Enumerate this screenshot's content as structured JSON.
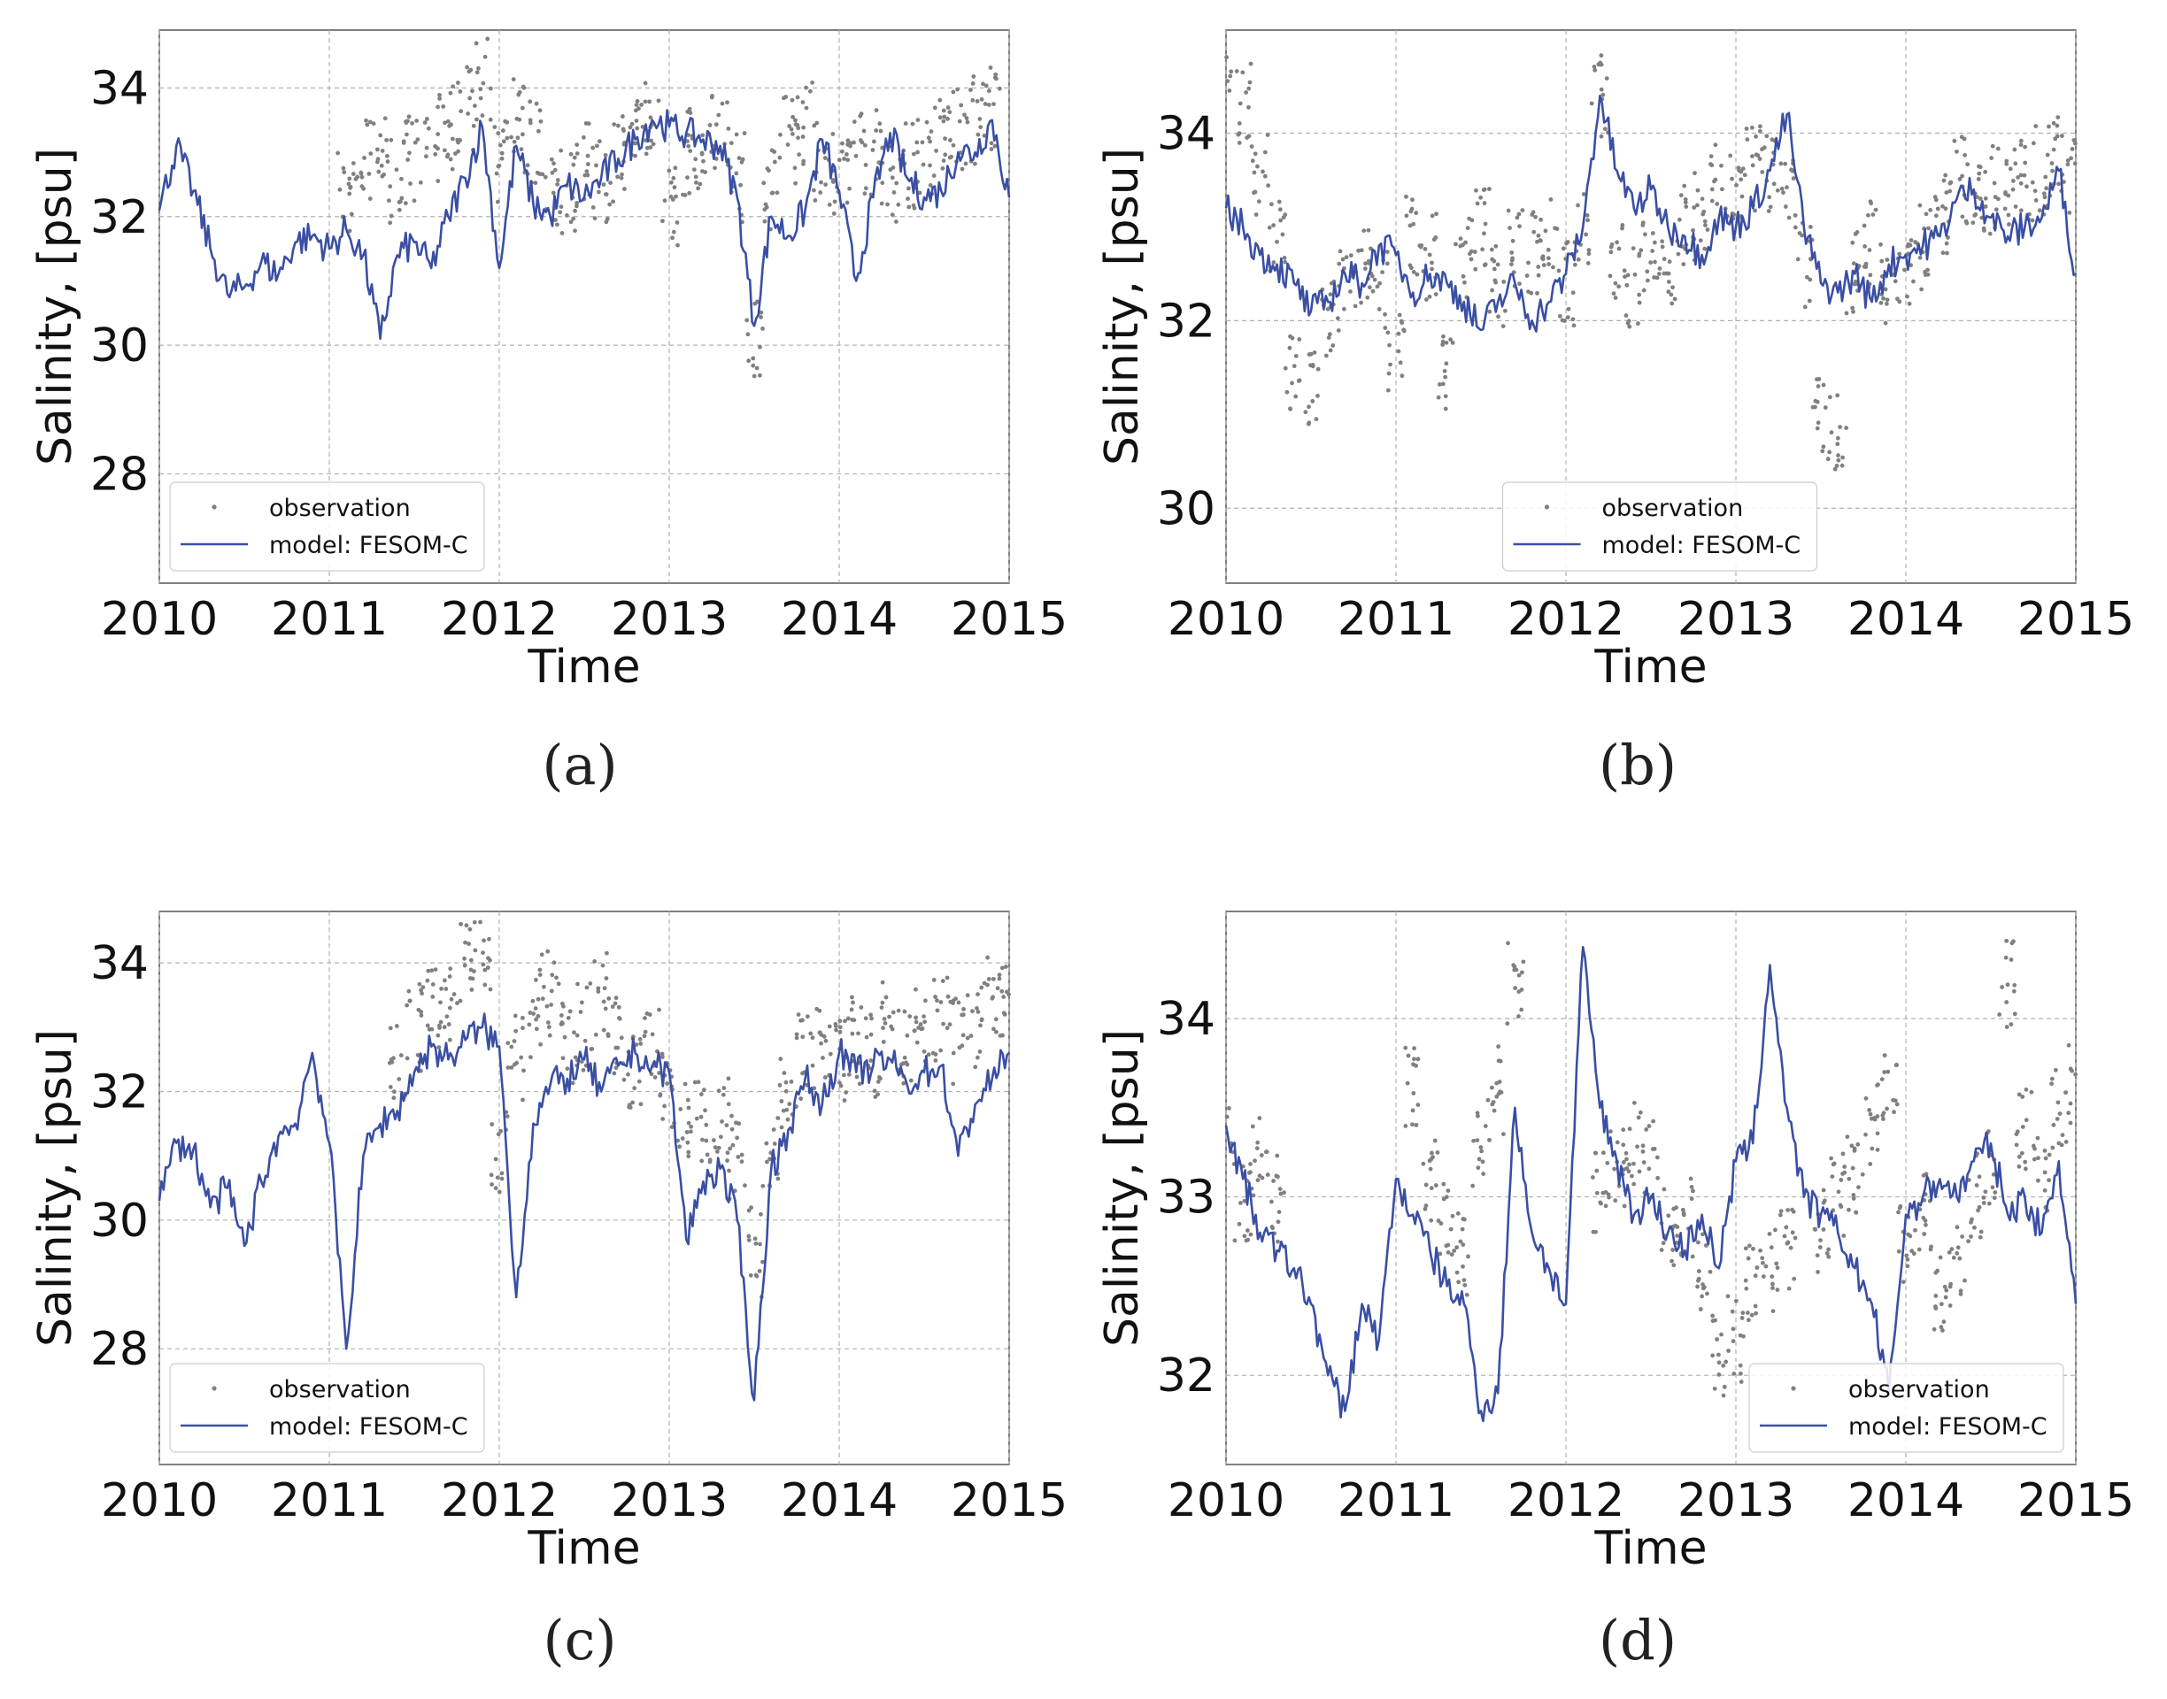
{
  "colors": {
    "observation": "#808080",
    "model": "#3a4fa3",
    "grid": "#b0b0b0",
    "axis": "#555555"
  },
  "chart_data": [
    {
      "type": "line",
      "panel_label": "(a)",
      "xlabel": "Time",
      "ylabel": "Salinity, [psu]",
      "xlim": [
        2010,
        2015
      ],
      "ylim": [
        26.3,
        34.9
      ],
      "xticks": [
        2010,
        2011,
        2012,
        2013,
        2014,
        2015
      ],
      "yticks": [
        28,
        30,
        32,
        34
      ],
      "grid": true,
      "legend": {
        "location": "lower-left",
        "entries": [
          "observation",
          "model: FESOM-C"
        ]
      },
      "series": [
        {
          "name": "observation",
          "kind": "scatter",
          "x": [
            2011.1,
            2011.2,
            2011.3,
            2011.4,
            2011.5,
            2011.6,
            2011.7,
            2011.8,
            2011.9,
            2012.0,
            2012.1,
            2012.2,
            2012.3,
            2012.4,
            2012.5,
            2012.6,
            2012.7,
            2012.8,
            2012.9,
            2013.0,
            2013.1,
            2013.2,
            2013.3,
            2013.4,
            2013.5,
            2013.6,
            2013.7,
            2013.8,
            2013.9,
            2014.0,
            2014.1,
            2014.2,
            2014.3,
            2014.4,
            2014.5,
            2014.6,
            2014.7,
            2014.8,
            2014.9
          ],
          "y": [
            32.4,
            32.9,
            33.0,
            32.6,
            32.9,
            33.2,
            33.4,
            33.7,
            34.1,
            32.8,
            33.6,
            33.2,
            32.5,
            32.4,
            32.8,
            32.6,
            32.9,
            33.3,
            33.6,
            32.2,
            33.0,
            32.8,
            33.4,
            32.6,
            30.2,
            32.5,
            33.2,
            33.5,
            32.8,
            32.7,
            33.1,
            33.0,
            32.6,
            32.8,
            33.0,
            33.2,
            33.3,
            33.5,
            33.7
          ]
        },
        {
          "name": "model: FESOM-C",
          "kind": "line",
          "x": [
            2010.0,
            2010.1,
            2010.2,
            2010.3,
            2010.4,
            2010.5,
            2010.6,
            2010.7,
            2010.8,
            2010.9,
            2011.0,
            2011.1,
            2011.2,
            2011.3,
            2011.4,
            2011.5,
            2011.6,
            2011.7,
            2011.8,
            2011.9,
            2012.0,
            2012.1,
            2012.2,
            2012.3,
            2012.4,
            2012.5,
            2012.6,
            2012.7,
            2012.8,
            2012.9,
            2013.0,
            2013.1,
            2013.2,
            2013.3,
            2013.4,
            2013.5,
            2013.6,
            2013.7,
            2013.8,
            2013.9,
            2014.0,
            2014.1,
            2014.2,
            2014.3,
            2014.4,
            2014.5,
            2014.6,
            2014.7,
            2014.8,
            2014.9,
            2015.0
          ],
          "y": [
            32.1,
            33.1,
            32.4,
            31.5,
            30.8,
            30.9,
            31.3,
            31.1,
            31.6,
            31.7,
            31.5,
            31.8,
            31.4,
            30.1,
            31.4,
            31.6,
            31.2,
            32.0,
            32.6,
            33.4,
            31.2,
            33.1,
            32.2,
            32.0,
            32.5,
            32.3,
            32.6,
            32.9,
            33.2,
            33.5,
            33.4,
            33.3,
            33.2,
            33.1,
            32.3,
            30.3,
            32.0,
            31.7,
            32.1,
            33.2,
            32.4,
            31.0,
            32.3,
            33.3,
            32.6,
            32.3,
            32.4,
            33.0,
            33.0,
            33.5,
            32.3
          ]
        }
      ]
    },
    {
      "type": "line",
      "panel_label": "(b)",
      "xlabel": "Time",
      "ylabel": "Salinity, [psu]",
      "xlim": [
        2010,
        2015
      ],
      "ylim": [
        29.2,
        35.1
      ],
      "xticks": [
        2010,
        2011,
        2012,
        2013,
        2014,
        2015
      ],
      "yticks": [
        30,
        32,
        34
      ],
      "grid": true,
      "legend": {
        "location": "lower-center",
        "entries": [
          "observation",
          "model: FESOM-C"
        ]
      },
      "series": [
        {
          "name": "observation",
          "kind": "scatter",
          "x": [
            2010.0,
            2010.1,
            2010.2,
            2010.3,
            2010.4,
            2010.5,
            2010.6,
            2010.7,
            2010.8,
            2010.9,
            2011.0,
            2011.1,
            2011.2,
            2011.3,
            2011.4,
            2011.5,
            2011.6,
            2011.7,
            2011.8,
            2011.9,
            2012.0,
            2012.1,
            2012.2,
            2012.3,
            2012.4,
            2012.5,
            2012.6,
            2012.7,
            2012.8,
            2012.9,
            2013.0,
            2013.1,
            2013.2,
            2013.3,
            2013.4,
            2013.5,
            2013.6,
            2013.7,
            2013.8,
            2013.9,
            2014.0,
            2014.1,
            2014.2,
            2014.3,
            2014.4,
            2014.5,
            2014.6,
            2014.7,
            2014.8,
            2014.9,
            2015.0
          ],
          "y": [
            34.4,
            34.3,
            33.6,
            32.8,
            31.5,
            31.2,
            32.0,
            32.3,
            32.6,
            32.4,
            31.6,
            32.9,
            32.7,
            31.5,
            32.7,
            33.0,
            32.4,
            32.8,
            32.7,
            33.0,
            32.4,
            33.0,
            34.4,
            32.6,
            32.3,
            32.8,
            32.5,
            33.0,
            33.1,
            33.4,
            33.4,
            33.6,
            33.5,
            33.5,
            32.6,
            31.0,
            30.8,
            32.5,
            32.8,
            32.4,
            32.6,
            32.8,
            33.2,
            33.5,
            33.5,
            33.4,
            33.5,
            33.5,
            33.6,
            33.7,
            33.6
          ]
        },
        {
          "name": "model: FESOM-C",
          "kind": "line",
          "x": [
            2010.0,
            2010.1,
            2010.2,
            2010.3,
            2010.4,
            2010.5,
            2010.6,
            2010.7,
            2010.8,
            2010.9,
            2011.0,
            2011.1,
            2011.2,
            2011.3,
            2011.4,
            2011.5,
            2011.6,
            2011.7,
            2011.8,
            2011.9,
            2012.0,
            2012.1,
            2012.2,
            2012.3,
            2012.4,
            2012.5,
            2012.6,
            2012.7,
            2012.8,
            2012.9,
            2013.0,
            2013.1,
            2013.2,
            2013.3,
            2013.4,
            2013.5,
            2013.6,
            2013.7,
            2013.8,
            2013.9,
            2014.0,
            2014.1,
            2014.2,
            2014.3,
            2014.4,
            2014.5,
            2014.6,
            2014.7,
            2014.8,
            2014.9,
            2015.0
          ],
          "y": [
            33.2,
            33.0,
            32.7,
            32.6,
            32.4,
            32.1,
            32.2,
            32.5,
            32.4,
            32.8,
            32.7,
            32.3,
            32.5,
            32.4,
            32.2,
            31.9,
            32.2,
            32.4,
            32.0,
            32.2,
            32.5,
            33.0,
            34.4,
            33.6,
            33.2,
            33.4,
            33.0,
            32.9,
            32.7,
            33.1,
            33.0,
            33.2,
            33.6,
            34.2,
            33.0,
            32.4,
            32.3,
            32.5,
            32.2,
            32.6,
            32.7,
            32.8,
            32.9,
            33.3,
            33.4,
            33.1,
            32.9,
            33.0,
            33.1,
            33.6,
            32.5
          ]
        }
      ]
    },
    {
      "type": "line",
      "panel_label": "(c)",
      "xlabel": "Time",
      "ylabel": "Salinity, [psu]",
      "xlim": [
        2010,
        2015
      ],
      "ylim": [
        26.2,
        34.8
      ],
      "xticks": [
        2010,
        2011,
        2012,
        2013,
        2014,
        2015
      ],
      "yticks": [
        28,
        30,
        32,
        34
      ],
      "grid": true,
      "legend": {
        "location": "lower-left",
        "entries": [
          "observation",
          "model: FESOM-C"
        ]
      },
      "series": [
        {
          "name": "observation",
          "kind": "scatter",
          "x": [
            2011.4,
            2011.5,
            2011.6,
            2011.7,
            2011.8,
            2011.9,
            2012.0,
            2012.1,
            2012.2,
            2012.3,
            2012.4,
            2012.5,
            2012.6,
            2012.7,
            2012.8,
            2012.9,
            2013.0,
            2013.1,
            2013.2,
            2013.3,
            2013.4,
            2013.5,
            2013.6,
            2013.7,
            2013.8,
            2013.9,
            2014.0,
            2014.1,
            2014.2,
            2014.3,
            2014.4,
            2014.5,
            2014.6,
            2014.7,
            2014.8,
            2014.9,
            2015.0
          ],
          "y": [
            32.6,
            33.0,
            33.2,
            33.5,
            34.0,
            34.1,
            31.0,
            32.5,
            33.2,
            33.5,
            32.8,
            33.0,
            33.5,
            32.8,
            32.2,
            32.6,
            32.1,
            31.5,
            31.5,
            31.6,
            31.0,
            29.5,
            31.2,
            32.0,
            32.5,
            32.6,
            32.4,
            32.8,
            32.6,
            33.0,
            32.8,
            33.1,
            33.1,
            32.8,
            33.0,
            33.5,
            33.4
          ]
        },
        {
          "name": "model: FESOM-C",
          "kind": "line",
          "x": [
            2010.0,
            2010.1,
            2010.2,
            2010.3,
            2010.4,
            2010.5,
            2010.6,
            2010.7,
            2010.8,
            2010.9,
            2011.0,
            2011.1,
            2011.2,
            2011.3,
            2011.4,
            2011.5,
            2011.6,
            2011.7,
            2011.8,
            2011.9,
            2012.0,
            2012.1,
            2012.2,
            2012.3,
            2012.4,
            2012.5,
            2012.6,
            2012.7,
            2012.8,
            2012.9,
            2013.0,
            2013.1,
            2013.2,
            2013.3,
            2013.4,
            2013.5,
            2013.6,
            2013.7,
            2013.8,
            2013.9,
            2014.0,
            2014.1,
            2014.2,
            2014.3,
            2014.4,
            2014.5,
            2014.6,
            2014.7,
            2014.8,
            2014.9,
            2015.0
          ],
          "y": [
            30.3,
            31.2,
            31.1,
            30.2,
            30.5,
            29.6,
            30.6,
            31.3,
            31.5,
            32.6,
            31.2,
            28.0,
            31.0,
            31.5,
            31.7,
            32.3,
            32.7,
            32.5,
            32.8,
            33.0,
            32.7,
            28.8,
            31.5,
            32.1,
            32.2,
            32.5,
            32.0,
            32.4,
            32.6,
            32.4,
            32.3,
            29.7,
            30.6,
            30.8,
            30.0,
            27.2,
            30.8,
            31.4,
            32.2,
            31.8,
            32.6,
            32.3,
            32.4,
            32.5,
            32.1,
            32.3,
            32.4,
            31.0,
            31.8,
            32.2,
            32.6
          ]
        }
      ]
    },
    {
      "type": "line",
      "panel_label": "(d)",
      "xlabel": "Time",
      "ylabel": "Salinity, [psu]",
      "xlim": [
        2010,
        2015
      ],
      "ylim": [
        31.5,
        34.6
      ],
      "xticks": [
        2010,
        2011,
        2012,
        2013,
        2014,
        2015
      ],
      "yticks": [
        32,
        33,
        34
      ],
      "grid": true,
      "legend": {
        "location": "lower-right",
        "entries": [
          "observation",
          "model: FESOM-C"
        ]
      },
      "series": [
        {
          "name": "observation",
          "kind": "scatter",
          "x": [
            2010.0,
            2010.1,
            2010.2,
            2010.3,
            2011.1,
            2011.2,
            2011.3,
            2011.4,
            2011.5,
            2011.6,
            2011.7,
            2012.2,
            2012.3,
            2012.4,
            2012.5,
            2012.6,
            2012.7,
            2012.8,
            2012.9,
            2013.0,
            2013.1,
            2013.2,
            2013.3,
            2013.5,
            2013.6,
            2013.7,
            2013.8,
            2013.9,
            2014.0,
            2014.1,
            2014.2,
            2014.3,
            2014.4,
            2014.5,
            2014.6,
            2014.7,
            2014.8,
            2014.9,
            2015.0
          ],
          "y": [
            33.3,
            33.0,
            33.2,
            33.0,
            33.6,
            33.1,
            32.9,
            32.7,
            33.3,
            33.6,
            34.2,
            33.0,
            33.2,
            33.3,
            33.2,
            32.8,
            32.9,
            32.6,
            32.1,
            32.2,
            32.5,
            32.6,
            32.7,
            32.8,
            33.0,
            33.1,
            33.4,
            33.6,
            32.7,
            32.9,
            32.5,
            32.6,
            33.0,
            33.2,
            34.2,
            33.4,
            33.1,
            33.5,
            33.6
          ]
        },
        {
          "name": "model: FESOM-C",
          "kind": "line",
          "x": [
            2010.0,
            2010.1,
            2010.2,
            2010.3,
            2010.4,
            2010.5,
            2010.6,
            2010.7,
            2010.8,
            2010.9,
            2011.0,
            2011.1,
            2011.2,
            2011.3,
            2011.4,
            2011.5,
            2011.6,
            2011.7,
            2011.8,
            2011.9,
            2012.0,
            2012.1,
            2012.2,
            2012.3,
            2012.4,
            2012.5,
            2012.6,
            2012.7,
            2012.8,
            2012.9,
            2013.0,
            2013.1,
            2013.2,
            2013.3,
            2013.4,
            2013.5,
            2013.6,
            2013.7,
            2013.8,
            2013.9,
            2014.0,
            2014.1,
            2014.2,
            2014.3,
            2014.4,
            2014.5,
            2014.6,
            2014.7,
            2014.8,
            2014.9,
            2015.0
          ],
          "y": [
            33.4,
            33.1,
            32.8,
            32.7,
            32.6,
            32.4,
            32.0,
            31.8,
            32.4,
            32.2,
            33.1,
            32.9,
            32.7,
            32.5,
            32.4,
            31.8,
            31.9,
            33.5,
            32.8,
            32.6,
            32.4,
            34.4,
            33.5,
            33.2,
            32.9,
            33.0,
            32.8,
            32.7,
            32.9,
            32.6,
            33.2,
            33.3,
            34.3,
            33.5,
            33.0,
            32.9,
            32.8,
            32.6,
            32.4,
            31.9,
            32.9,
            33.0,
            33.1,
            33.0,
            33.2,
            33.3,
            32.9,
            33.0,
            32.8,
            33.2,
            32.4
          ]
        }
      ]
    }
  ]
}
